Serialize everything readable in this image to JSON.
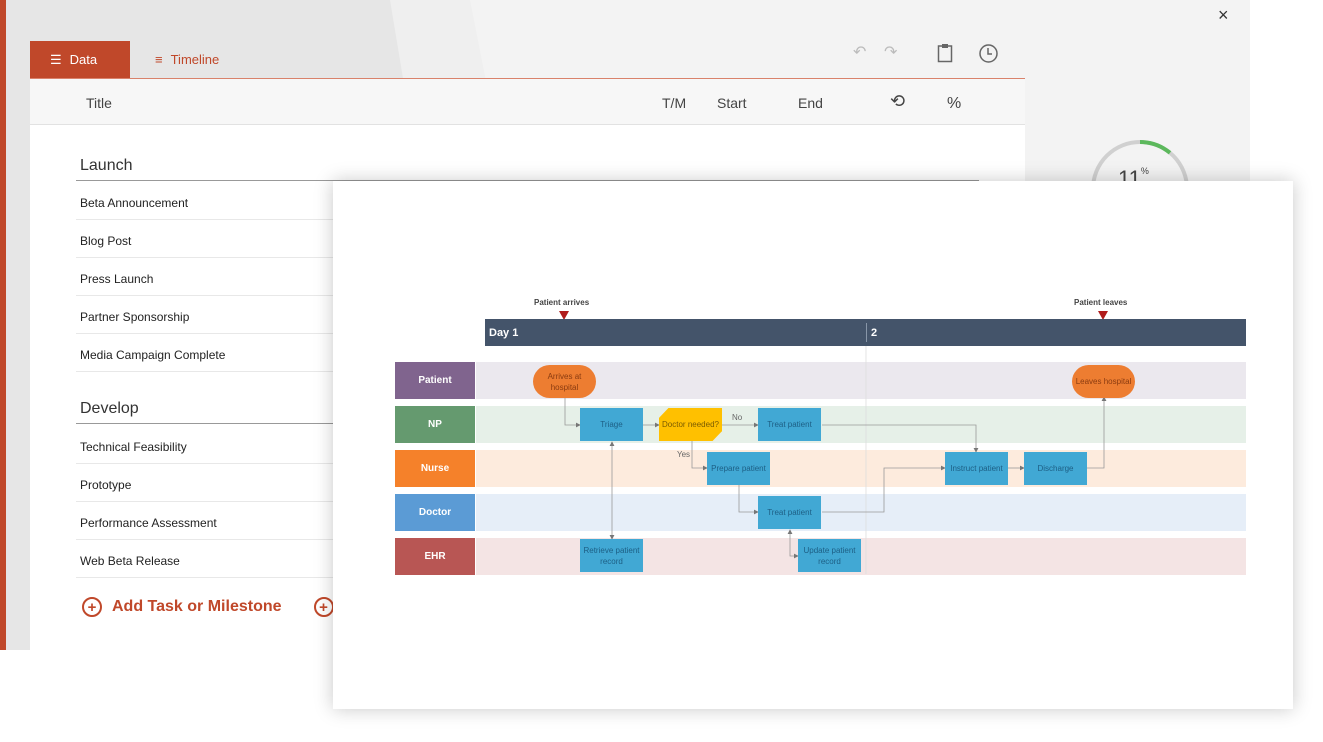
{
  "window": {
    "close_icon": "×"
  },
  "tabs": [
    {
      "label": "Data",
      "icon": "list-icon",
      "active": true
    },
    {
      "label": "Timeline",
      "icon": "timeline-icon",
      "active": false
    }
  ],
  "toolbar": {
    "undo": "↶",
    "redo": "↷",
    "clipboard_icon": "clipboard-icon",
    "clock_icon": "clock-icon"
  },
  "columns": {
    "title": "Title",
    "tm": "T/M",
    "start": "Start",
    "end": "End",
    "duration_icon": "history-icon",
    "percent": "%"
  },
  "groups": [
    {
      "name": "Launch",
      "items": [
        "Beta Announcement",
        "Blog Post",
        "Press Launch",
        "Partner Sponsorship",
        "Media Campaign Complete"
      ]
    },
    {
      "name": "Develop",
      "items": [
        "Technical Feasibility",
        "Prototype",
        "Performance Assessment",
        "Web Beta Release"
      ]
    }
  ],
  "add_label": "Add Task or Milestone",
  "gauge": {
    "value": "11",
    "unit": "%",
    "fraction": 0.11,
    "color": "#5cb85c"
  },
  "accent": "#c0482a",
  "diagram": {
    "milestones": [
      "Patient arrives",
      "Patient leaves"
    ],
    "days": [
      "Day 1",
      "2"
    ],
    "lanes": [
      {
        "name": "Patient",
        "color": "#80648e",
        "bg": "#ebe8ee"
      },
      {
        "name": "NP",
        "color": "#659a6f",
        "bg": "#e6f0e8"
      },
      {
        "name": "Nurse",
        "color": "#f5812a",
        "bg": "#fdebdd"
      },
      {
        "name": "Doctor",
        "color": "#5b9bd5",
        "bg": "#e6eef8"
      },
      {
        "name": "EHR",
        "color": "#b85654",
        "bg": "#f4e4e4"
      }
    ],
    "nodes": {
      "arrives": "Arrives at hospital",
      "triage": "Triage",
      "doctor_needed": "Doctor needed?",
      "treat_np": "Treat patient",
      "prepare": "Prepare patient",
      "treat_doc": "Treat patient",
      "retrieve": "Retrieve patient record",
      "update": "Update patient record",
      "instruct": "Instruct patient",
      "discharge": "Discharge",
      "leaves": "Leaves hospital"
    },
    "labels": {
      "no": "No",
      "yes": "Yes"
    }
  }
}
